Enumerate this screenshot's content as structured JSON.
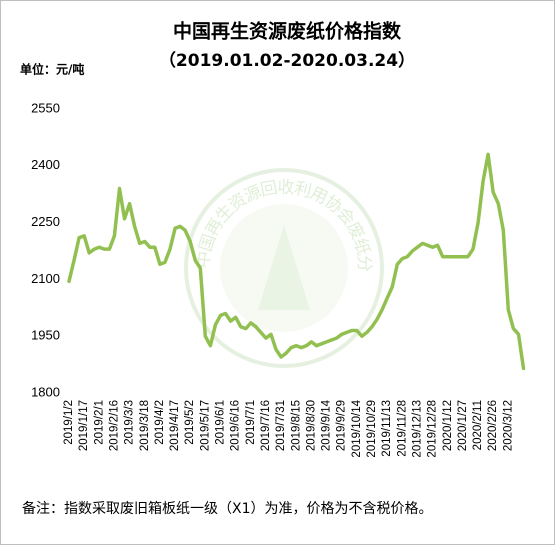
{
  "chart_data": {
    "type": "line",
    "title": "中国再生资源废纸价格指数",
    "subtitle": "（2019.01.02-2020.03.24）",
    "unit": "单位：元/吨",
    "note": "备注：指数采取废旧箱板纸一级（X1）为准，价格为不含税价格。",
    "watermark": "中国再生资源回收利用协会废纸分会",
    "categories": [
      "2019/1/2",
      null,
      null,
      "2019/1/17",
      null,
      null,
      "2019/2/1",
      null,
      null,
      "2019/2/16",
      null,
      null,
      "2019/3/3",
      null,
      null,
      "2019/3/18",
      null,
      null,
      "2019/4/2",
      null,
      null,
      "2019/4/17",
      null,
      null,
      "2019/5/2",
      null,
      null,
      "2019/5/17",
      null,
      null,
      "2019/6/1",
      null,
      null,
      "2019/6/16",
      null,
      null,
      "2019/7/1",
      null,
      null,
      "2019/7/16",
      null,
      null,
      "2019/7/31",
      null,
      null,
      "2019/8/15",
      null,
      null,
      "2019/8/30",
      null,
      null,
      "2019/9/14",
      null,
      null,
      "2019/9/29",
      null,
      null,
      "2019/10/14",
      null,
      null,
      "2019/10/29",
      null,
      null,
      "2019/11/13",
      null,
      null,
      "2019/11/28",
      null,
      null,
      "2019/12/13",
      null,
      null,
      "2019/12/28",
      null,
      null,
      "2020/1/12",
      null,
      null,
      "2020/1/27",
      null,
      null,
      "2020/2/11",
      null,
      null,
      "2020/2/26",
      null,
      null,
      "2020/3/12",
      null,
      null,
      null
    ],
    "values": [
      2095,
      2150,
      2210,
      2215,
      2170,
      2180,
      2185,
      2180,
      2180,
      2215,
      2340,
      2260,
      2300,
      2240,
      2195,
      2200,
      2185,
      2185,
      2140,
      2145,
      2180,
      2235,
      2240,
      2230,
      2200,
      2150,
      2130,
      1950,
      1925,
      1980,
      2005,
      2010,
      1990,
      2000,
      1975,
      1970,
      1985,
      1975,
      1960,
      1945,
      1955,
      1915,
      1895,
      1905,
      1920,
      1925,
      1920,
      1925,
      1935,
      1925,
      1930,
      1935,
      1940,
      1945,
      1955,
      1960,
      1965,
      1965,
      1950,
      1960,
      1975,
      1995,
      2020,
      2050,
      2080,
      2140,
      2155,
      2160,
      2175,
      2185,
      2195,
      2190,
      2185,
      2190,
      2160,
      2160,
      2160,
      2160,
      2160,
      2160,
      2180,
      2250,
      2360,
      2430,
      2330,
      2300,
      2230,
      2020,
      1970,
      1955,
      1865
    ],
    "color": "#92c050",
    "ylim": [
      1800,
      2550
    ],
    "yticks": [
      1800,
      1950,
      2100,
      2250,
      2400,
      2550
    ],
    "grid": false
  }
}
